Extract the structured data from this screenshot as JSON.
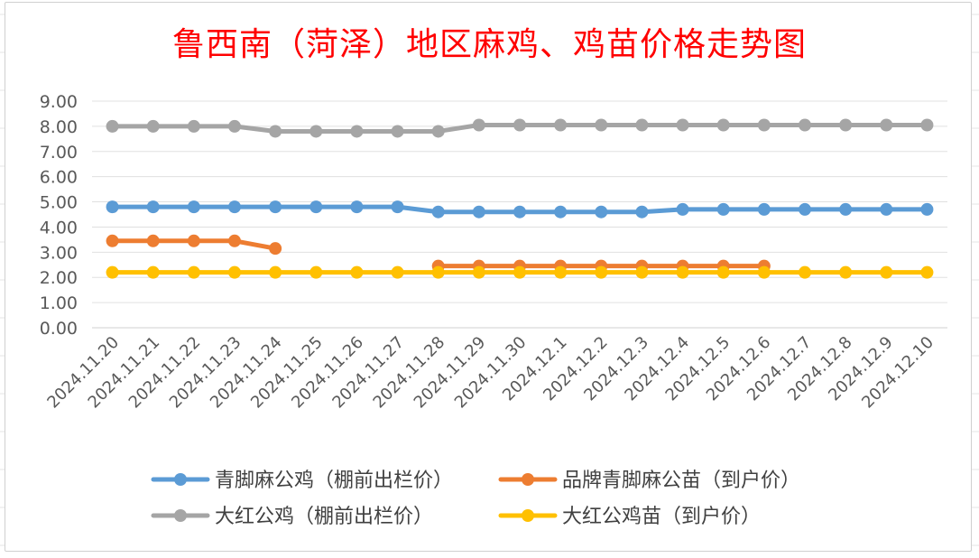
{
  "chart_data": {
    "type": "line",
    "title": "鲁西南（菏泽）地区麻鸡、鸡苗价格走势图",
    "categories": [
      "2024.11.20",
      "2024.11.21",
      "2024.11.22",
      "2024.11.23",
      "2024.11.24",
      "2024.11.25",
      "2024.11.26",
      "2024.11.27",
      "2024.11.28",
      "2024.11.29",
      "2024.11.30",
      "2024.12.1",
      "2024.12.2",
      "2024.12.3",
      "2024.12.4",
      "2024.12.5",
      "2024.12.6",
      "2024.12.7",
      "2024.12.8",
      "2024.12.9",
      "2024.12.10"
    ],
    "yticks": [
      "0.00",
      "1.00",
      "2.00",
      "3.00",
      "4.00",
      "5.00",
      "6.00",
      "7.00",
      "8.00",
      "9.00"
    ],
    "ylim": [
      0,
      9
    ],
    "grid": true,
    "legend_position": "bottom",
    "series": [
      {
        "name": "青脚麻公鸡（棚前出栏价）",
        "color": "#5b9bd5",
        "values": [
          4.8,
          4.8,
          4.8,
          4.8,
          4.8,
          4.8,
          4.8,
          4.8,
          4.6,
          4.6,
          4.6,
          4.6,
          4.6,
          4.6,
          4.7,
          4.7,
          4.7,
          4.7,
          4.7,
          4.7,
          4.7
        ]
      },
      {
        "name": "品牌青脚麻公苗（到户价）",
        "color": "#ed7d31",
        "values": [
          3.45,
          3.45,
          3.45,
          3.45,
          3.15,
          null,
          null,
          null,
          2.45,
          2.45,
          2.45,
          2.45,
          2.45,
          2.45,
          2.45,
          2.45,
          2.45,
          null,
          null,
          null,
          null
        ]
      },
      {
        "name": "大红公鸡（棚前出栏价）",
        "color": "#a5a5a5",
        "values": [
          8.0,
          8.0,
          8.0,
          8.0,
          7.8,
          7.8,
          7.8,
          7.8,
          7.8,
          8.05,
          8.05,
          8.05,
          8.05,
          8.05,
          8.05,
          8.05,
          8.05,
          8.05,
          8.05,
          8.05,
          8.05
        ]
      },
      {
        "name": "大红公鸡苗（到户价）",
        "color": "#ffc000",
        "values": [
          2.2,
          2.2,
          2.2,
          2.2,
          2.2,
          2.2,
          2.2,
          2.2,
          2.2,
          2.2,
          2.2,
          2.2,
          2.2,
          2.2,
          2.2,
          2.2,
          2.2,
          2.2,
          2.2,
          2.2,
          2.2
        ]
      }
    ]
  }
}
